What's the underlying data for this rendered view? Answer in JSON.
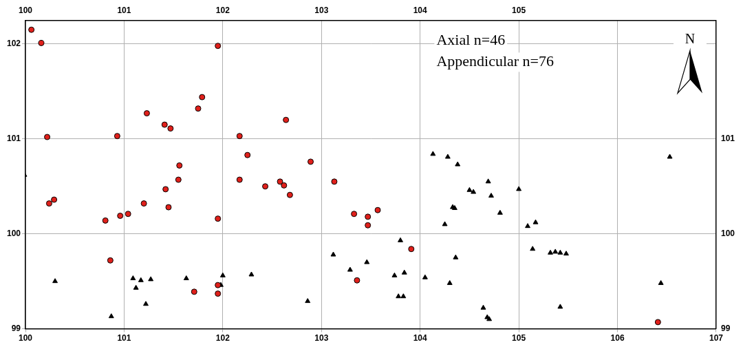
{
  "chart_data": {
    "type": "scatter",
    "annotations": [
      "Axial n=46",
      "Appendicular n=76"
    ],
    "north_label": "N",
    "xlim": [
      100,
      107
    ],
    "xticks": [
      100,
      101,
      102,
      103,
      104,
      105,
      106,
      107
    ],
    "x2lim": [
      100,
      107
    ],
    "x2ticks": [
      100,
      101,
      102,
      103,
      104,
      105
    ],
    "ylim": [
      99,
      102.25
    ],
    "yticks": [
      99,
      100,
      101,
      102
    ],
    "y2lim": [
      99,
      102.25
    ],
    "y2ticks": [
      99,
      100,
      101
    ],
    "grid": true,
    "series": [
      {
        "color": "#e0201b",
        "marker": "circle",
        "x": [
          100.06,
          100.16,
          100.22,
          100.93,
          101.95,
          101.23,
          101.75,
          101.79,
          101.41,
          101.47,
          101.56,
          101.55,
          101.42,
          101.45,
          101.2,
          100.96,
          101.04,
          100.81,
          100.86,
          100.24,
          100.29,
          101.95,
          102.17,
          102.25,
          102.17,
          102.64,
          102.43,
          102.58,
          102.62,
          102.68,
          102.89,
          103.13,
          103.33,
          103.47,
          103.47,
          103.57,
          103.91,
          101.71,
          101.95,
          101.95,
          103.36,
          106.41
        ],
        "y": [
          102.15,
          102.01,
          101.02,
          101.03,
          101.98,
          101.27,
          101.32,
          101.44,
          101.15,
          101.11,
          100.72,
          100.57,
          100.47,
          100.28,
          100.32,
          100.19,
          100.21,
          100.14,
          99.72,
          100.32,
          100.36,
          100.16,
          101.03,
          100.83,
          100.57,
          101.2,
          100.5,
          100.55,
          100.51,
          100.41,
          100.76,
          100.55,
          100.21,
          100.18,
          100.09,
          100.25,
          99.84,
          99.39,
          99.46,
          99.37,
          99.51,
          99.07
        ]
      },
      {
        "color": "#000000",
        "marker": "triangle",
        "x": [
          99.99,
          100.3,
          100.87,
          101.09,
          101.12,
          101.17,
          101.22,
          101.27,
          101.63,
          102.0,
          101.98,
          102.29,
          102.86,
          103.12,
          103.29,
          103.46,
          103.74,
          103.78,
          103.83,
          103.84,
          103.8,
          104.05,
          104.13,
          104.28,
          104.38,
          104.25,
          104.33,
          104.35,
          104.3,
          104.36,
          104.5,
          104.54,
          104.69,
          104.72,
          104.81,
          104.64,
          104.68,
          104.7,
          105.0,
          105.09,
          105.17,
          105.14,
          105.32,
          105.37,
          105.42,
          105.48,
          105.42,
          106.53,
          106.44
        ],
        "y": [
          100.62,
          99.5,
          99.13,
          99.53,
          99.43,
          99.51,
          99.26,
          99.52,
          99.53,
          99.56,
          99.46,
          99.57,
          99.29,
          99.78,
          99.62,
          99.7,
          99.56,
          99.34,
          99.34,
          99.59,
          99.93,
          99.54,
          100.84,
          100.81,
          100.73,
          100.1,
          100.28,
          100.27,
          99.48,
          99.75,
          100.46,
          100.44,
          100.55,
          100.4,
          100.22,
          99.22,
          99.12,
          99.1,
          100.47,
          100.08,
          100.12,
          99.84,
          99.8,
          99.81,
          99.8,
          99.79,
          99.23,
          100.81,
          99.48
        ]
      }
    ]
  }
}
